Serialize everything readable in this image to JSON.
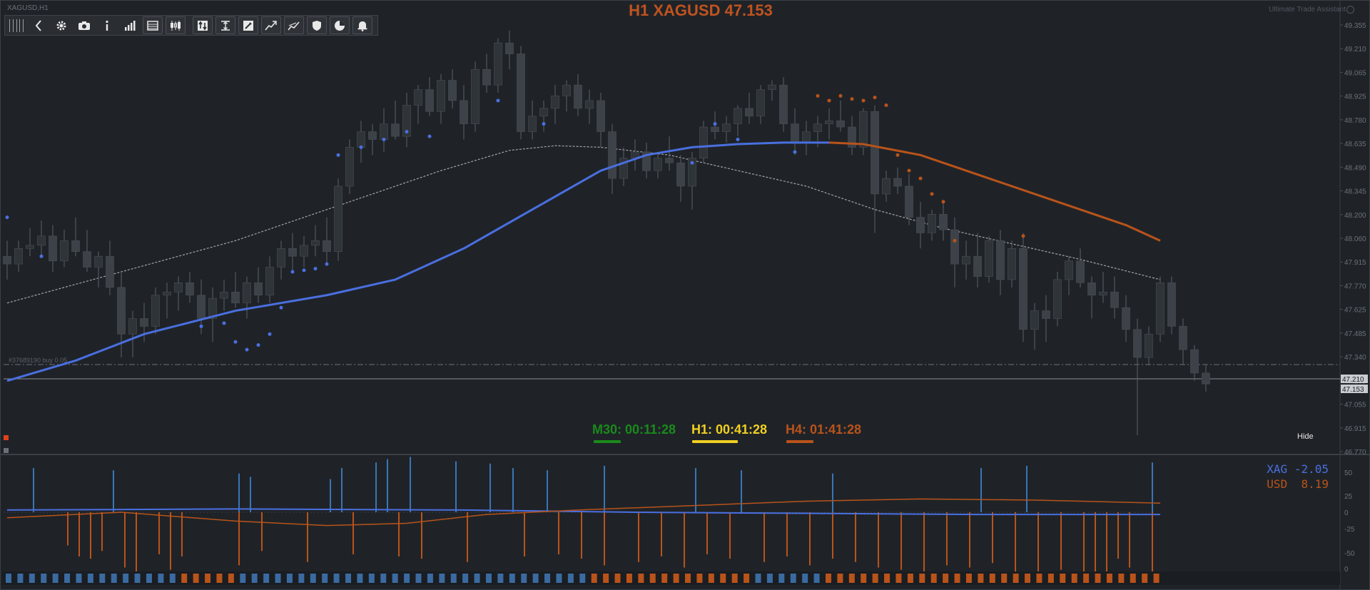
{
  "header": {
    "title": "H1 XAGUSD 47.153",
    "symbol_label": "XAGUSD,H1",
    "assistant_label": "Ultimate Trade Assistant"
  },
  "toolbar": {
    "buttons": [
      {
        "name": "grip",
        "icon": "grip-icon"
      },
      {
        "name": "collapse",
        "icon": "chevron-left-icon"
      },
      {
        "name": "settings",
        "icon": "gear-icon"
      },
      {
        "name": "screenshot",
        "icon": "camera-icon"
      },
      {
        "name": "info",
        "icon": "info-icon"
      },
      {
        "name": "volume-chart",
        "icon": "bar-chart-icon"
      },
      {
        "name": "list",
        "icon": "list-icon"
      },
      {
        "name": "candles",
        "icon": "candlestick-icon"
      },
      {
        "name": "trade-arrows",
        "icon": "arrows-icon"
      },
      {
        "name": "range",
        "icon": "range-icon"
      },
      {
        "name": "draw",
        "icon": "pencil-icon"
      },
      {
        "name": "trend-line",
        "icon": "trendline-icon"
      },
      {
        "name": "trend-line-2",
        "icon": "trendline-alt-icon"
      },
      {
        "name": "shield",
        "icon": "shield-icon"
      },
      {
        "name": "pie-chart",
        "icon": "pie-chart-icon"
      },
      {
        "name": "alerts",
        "icon": "bell-icon"
      }
    ]
  },
  "order_line": {
    "label": "#37689190 buy 0.05"
  },
  "timers": [
    {
      "label": "M30: 00:11:28",
      "color": "#1a8a1a"
    },
    {
      "label": "H1: 00:41:28",
      "color": "#f0d020"
    },
    {
      "label": "H4: 01:41:28",
      "color": "#b9531a"
    }
  ],
  "hide_label": "Hide",
  "price_axis": {
    "ticks": [
      "49.355",
      "49.210",
      "49.065",
      "48.925",
      "48.780",
      "48.635",
      "48.490",
      "48.345",
      "48.200",
      "48.060",
      "47.915",
      "47.770",
      "47.625",
      "47.485",
      "47.340",
      "47.195",
      "47.055",
      "46.915",
      "46.770"
    ],
    "current_price": "47.153",
    "order_price": "47.210"
  },
  "indicator_panel": {
    "legend": [
      {
        "label": "XAG",
        "value": "-2.05",
        "color": "#4a6fe0"
      },
      {
        "label": "USD",
        "value": "8.19",
        "color": "#b9531a"
      }
    ],
    "axis_ticks": [
      "50",
      "25",
      "0",
      "-25",
      "-50",
      "0"
    ]
  },
  "colors": {
    "background": "#1f2328",
    "bull_body": "#2f3439",
    "bear_body": "#3c4248",
    "wick": "#5a6068",
    "ma_fast": "#4a6fe0",
    "ma_fast_bear": "#b9531a",
    "ma_slow": "#b9bdc2",
    "dot_blue": "#4a6fe0",
    "dot_orange": "#b9531a",
    "accent_orange": "#c0531f"
  },
  "chart_data": {
    "type": "candlestick",
    "timeframe": "H1",
    "symbol": "XAGUSD",
    "ylim": [
      46.7,
      49.44
    ],
    "candles": [
      [
        47.95,
        48.05,
        47.8,
        47.9
      ],
      [
        47.9,
        48.05,
        47.85,
        48.0
      ],
      [
        48.0,
        48.13,
        47.95,
        48.02
      ],
      [
        48.02,
        48.18,
        47.96,
        48.08
      ],
      [
        48.08,
        48.15,
        47.85,
        47.92
      ],
      [
        47.92,
        48.12,
        47.88,
        48.05
      ],
      [
        48.05,
        48.2,
        47.95,
        47.98
      ],
      [
        47.98,
        48.12,
        47.85,
        47.88
      ],
      [
        47.88,
        47.98,
        47.75,
        47.95
      ],
      [
        47.95,
        48.05,
        47.7,
        47.75
      ],
      [
        47.75,
        47.85,
        47.3,
        47.45
      ],
      [
        47.45,
        47.6,
        47.3,
        47.55
      ],
      [
        47.55,
        47.65,
        47.4,
        47.5
      ],
      [
        47.5,
        47.75,
        47.45,
        47.7
      ],
      [
        47.7,
        47.78,
        47.55,
        47.72
      ],
      [
        47.72,
        47.82,
        47.6,
        47.78
      ],
      [
        47.78,
        47.85,
        47.65,
        47.7
      ],
      [
        47.7,
        47.8,
        47.45,
        47.55
      ],
      [
        47.55,
        47.75,
        47.4,
        47.68
      ],
      [
        47.68,
        47.8,
        47.6,
        47.72
      ],
      [
        47.72,
        47.85,
        47.62,
        47.65
      ],
      [
        47.65,
        47.82,
        47.55,
        47.78
      ],
      [
        47.78,
        47.88,
        47.65,
        47.7
      ],
      [
        47.7,
        47.95,
        47.65,
        47.88
      ],
      [
        47.88,
        48.05,
        47.8,
        48.0
      ],
      [
        48.0,
        48.1,
        47.85,
        47.95
      ],
      [
        47.95,
        48.08,
        47.88,
        48.02
      ],
      [
        48.02,
        48.15,
        47.95,
        48.05
      ],
      [
        48.05,
        48.2,
        47.9,
        47.98
      ],
      [
        47.98,
        48.45,
        47.92,
        48.4
      ],
      [
        48.4,
        48.7,
        48.35,
        48.65
      ],
      [
        48.65,
        48.82,
        48.55,
        48.75
      ],
      [
        48.75,
        48.8,
        48.6,
        48.7
      ],
      [
        48.7,
        48.9,
        48.62,
        48.8
      ],
      [
        48.8,
        48.95,
        48.7,
        48.72
      ],
      [
        48.72,
        49.0,
        48.65,
        48.92
      ],
      [
        48.92,
        49.05,
        48.8,
        49.02
      ],
      [
        49.02,
        49.1,
        48.85,
        48.88
      ],
      [
        48.88,
        49.12,
        48.8,
        49.08
      ],
      [
        49.08,
        49.15,
        48.9,
        48.95
      ],
      [
        48.95,
        49.05,
        48.7,
        48.8
      ],
      [
        48.8,
        49.2,
        48.75,
        49.15
      ],
      [
        49.15,
        49.25,
        49.0,
        49.05
      ],
      [
        49.05,
        49.35,
        49.0,
        49.32
      ],
      [
        49.32,
        49.4,
        49.15,
        49.25
      ],
      [
        49.25,
        49.3,
        48.7,
        48.75
      ],
      [
        48.75,
        48.95,
        48.7,
        48.85
      ],
      [
        48.85,
        48.95,
        48.75,
        48.9
      ],
      [
        48.9,
        49.05,
        48.8,
        48.98
      ],
      [
        48.98,
        49.08,
        48.88,
        49.05
      ],
      [
        49.05,
        49.12,
        48.85,
        48.9
      ],
      [
        48.9,
        49.02,
        48.8,
        48.95
      ],
      [
        48.95,
        49.0,
        48.65,
        48.75
      ],
      [
        48.75,
        48.8,
        48.35,
        48.45
      ],
      [
        48.45,
        48.65,
        48.4,
        48.58
      ],
      [
        48.58,
        48.7,
        48.5,
        48.62
      ],
      [
        48.62,
        48.68,
        48.45,
        48.5
      ],
      [
        48.5,
        48.62,
        48.45,
        48.58
      ],
      [
        48.58,
        48.72,
        48.5,
        48.55
      ],
      [
        48.55,
        48.6,
        48.3,
        48.4
      ],
      [
        48.4,
        48.62,
        48.25,
        48.58
      ],
      [
        48.58,
        48.82,
        48.55,
        48.78
      ],
      [
        48.78,
        48.88,
        48.7,
        48.75
      ],
      [
        48.75,
        48.85,
        48.68,
        48.8
      ],
      [
        48.8,
        48.92,
        48.72,
        48.9
      ],
      [
        48.9,
        49.0,
        48.8,
        48.85
      ],
      [
        48.85,
        49.05,
        48.8,
        49.02
      ],
      [
        49.02,
        49.08,
        48.95,
        49.05
      ],
      [
        49.05,
        49.1,
        48.75,
        48.8
      ],
      [
        48.8,
        48.9,
        48.6,
        48.68
      ],
      [
        48.68,
        48.82,
        48.6,
        48.75
      ],
      [
        48.75,
        48.85,
        48.65,
        48.8
      ],
      [
        48.8,
        48.9,
        48.7,
        48.82
      ],
      [
        48.82,
        48.95,
        48.75,
        48.78
      ],
      [
        48.78,
        48.85,
        48.6,
        48.65
      ],
      [
        48.65,
        48.9,
        48.6,
        48.88
      ],
      [
        48.88,
        48.92,
        48.1,
        48.35
      ],
      [
        48.35,
        48.5,
        48.3,
        48.45
      ],
      [
        48.45,
        48.52,
        48.35,
        48.4
      ],
      [
        48.4,
        48.48,
        48.15,
        48.2
      ],
      [
        48.2,
        48.3,
        48.0,
        48.1
      ],
      [
        48.1,
        48.25,
        48.05,
        48.22
      ],
      [
        48.22,
        48.3,
        48.05,
        48.12
      ],
      [
        48.12,
        48.2,
        47.75,
        47.9
      ],
      [
        47.9,
        48.05,
        47.8,
        47.95
      ],
      [
        47.95,
        48.1,
        47.75,
        47.82
      ],
      [
        47.82,
        48.08,
        47.78,
        48.05
      ],
      [
        48.05,
        48.12,
        47.7,
        47.8
      ],
      [
        47.8,
        48.05,
        47.75,
        48.0
      ],
      [
        48.0,
        48.1,
        47.4,
        47.48
      ],
      [
        47.48,
        47.65,
        47.35,
        47.6
      ],
      [
        47.6,
        47.7,
        47.4,
        47.55
      ],
      [
        47.55,
        47.85,
        47.5,
        47.8
      ],
      [
        47.8,
        47.95,
        47.7,
        47.92
      ],
      [
        47.92,
        48.0,
        47.75,
        47.78
      ],
      [
        47.78,
        47.82,
        47.55,
        47.7
      ],
      [
        47.7,
        47.85,
        47.65,
        47.72
      ],
      [
        47.72,
        47.82,
        47.55,
        47.62
      ],
      [
        47.62,
        47.7,
        47.4,
        47.48
      ],
      [
        47.48,
        47.55,
        46.8,
        47.3
      ],
      [
        47.3,
        47.5,
        47.25,
        47.45
      ],
      [
        47.45,
        47.82,
        47.4,
        47.78
      ],
      [
        47.78,
        47.82,
        47.45,
        47.5
      ],
      [
        47.5,
        47.55,
        47.25,
        47.35
      ],
      [
        47.35,
        47.38,
        47.15,
        47.2
      ],
      [
        47.2,
        47.25,
        47.08,
        47.13
      ]
    ],
    "ma_fast": [
      [
        0,
        47.15
      ],
      [
        6,
        47.28
      ],
      [
        12,
        47.45
      ],
      [
        20,
        47.6
      ],
      [
        28,
        47.7
      ],
      [
        34,
        47.8
      ],
      [
        40,
        48.0
      ],
      [
        46,
        48.25
      ],
      [
        52,
        48.5
      ],
      [
        56,
        48.6
      ],
      [
        60,
        48.65
      ],
      [
        64,
        48.67
      ],
      [
        68,
        48.68
      ],
      [
        72,
        48.68
      ],
      [
        75,
        48.67
      ],
      [
        80,
        48.6
      ],
      [
        86,
        48.45
      ],
      [
        92,
        48.3
      ],
      [
        98,
        48.15
      ],
      [
        101,
        48.05
      ]
    ],
    "ma_fast_bear_from": 72,
    "ma_slow": [
      [
        0,
        47.65
      ],
      [
        10,
        47.85
      ],
      [
        20,
        48.05
      ],
      [
        30,
        48.3
      ],
      [
        38,
        48.5
      ],
      [
        44,
        48.63
      ],
      [
        48,
        48.66
      ],
      [
        52,
        48.65
      ],
      [
        58,
        48.6
      ],
      [
        64,
        48.5
      ],
      [
        70,
        48.4
      ],
      [
        76,
        48.25
      ],
      [
        82,
        48.13
      ],
      [
        88,
        48.03
      ],
      [
        94,
        47.93
      ],
      [
        101,
        47.8
      ]
    ],
    "dots_blue": [
      [
        0,
        48.2
      ],
      [
        3,
        47.95
      ],
      [
        17,
        47.5
      ],
      [
        19,
        47.52
      ],
      [
        20,
        47.4
      ],
      [
        21,
        47.35
      ],
      [
        22,
        47.38
      ],
      [
        23,
        47.45
      ],
      [
        24,
        47.62
      ],
      [
        25,
        47.85
      ],
      [
        26,
        47.86
      ],
      [
        27,
        47.87
      ],
      [
        28,
        47.9
      ],
      [
        29,
        48.6
      ],
      [
        31,
        48.65
      ],
      [
        33,
        48.7
      ],
      [
        35,
        48.75
      ],
      [
        37,
        48.72
      ],
      [
        43,
        48.95
      ],
      [
        47,
        48.8
      ],
      [
        60,
        48.55
      ],
      [
        62,
        48.8
      ],
      [
        64,
        48.7
      ],
      [
        69,
        48.62
      ]
    ],
    "dots_orange": [
      [
        71,
        48.98
      ],
      [
        72,
        48.95
      ],
      [
        73,
        48.98
      ],
      [
        74,
        48.96
      ],
      [
        75,
        48.95
      ],
      [
        76,
        48.97
      ],
      [
        77,
        48.92
      ],
      [
        78,
        48.6
      ],
      [
        79,
        48.5
      ],
      [
        80,
        48.45
      ],
      [
        81,
        48.35
      ],
      [
        82,
        48.3
      ],
      [
        83,
        48.05
      ],
      [
        89,
        48.08
      ]
    ],
    "order_price": 47.21,
    "current_price": 47.153,
    "strength_histogram_xag": [
      [
        2,
        40
      ],
      [
        9,
        38
      ],
      [
        20,
        35
      ],
      [
        21,
        32
      ],
      [
        28,
        30
      ],
      [
        29,
        40
      ],
      [
        32,
        45
      ],
      [
        33,
        48
      ],
      [
        35,
        50
      ],
      [
        39,
        46
      ],
      [
        42,
        44
      ],
      [
        44,
        40
      ],
      [
        47,
        38
      ],
      [
        52,
        42
      ],
      [
        60,
        40
      ],
      [
        64,
        38
      ],
      [
        72,
        35
      ],
      [
        85,
        40
      ],
      [
        89,
        42
      ],
      [
        100,
        45
      ]
    ],
    "strength_histogram_usd": [
      [
        5,
        -30
      ],
      [
        6,
        -40
      ],
      [
        7,
        -42
      ],
      [
        8,
        -35
      ],
      [
        10,
        -50
      ],
      [
        11,
        -55
      ],
      [
        13,
        -38
      ],
      [
        14,
        -52
      ],
      [
        15,
        -40
      ],
      [
        20,
        -48
      ],
      [
        22,
        -35
      ],
      [
        26,
        -45
      ],
      [
        30,
        -38
      ],
      [
        34,
        -40
      ],
      [
        36,
        -42
      ],
      [
        40,
        -45
      ],
      [
        45,
        -40
      ],
      [
        48,
        -38
      ],
      [
        50,
        -42
      ],
      [
        52,
        -48
      ],
      [
        55,
        -45
      ],
      [
        57,
        -40
      ],
      [
        59,
        -50
      ],
      [
        61,
        -38
      ],
      [
        63,
        -42
      ],
      [
        66,
        -45
      ],
      [
        68,
        -40
      ],
      [
        70,
        -48
      ],
      [
        72,
        -42
      ],
      [
        74,
        -45
      ],
      [
        76,
        -50
      ],
      [
        78,
        -52
      ],
      [
        80,
        -55
      ],
      [
        82,
        -48
      ],
      [
        84,
        -50
      ],
      [
        86,
        -46
      ],
      [
        88,
        -55
      ],
      [
        90,
        -58
      ],
      [
        92,
        -52
      ],
      [
        94,
        -56
      ],
      [
        95,
        -60
      ],
      [
        96,
        -55
      ],
      [
        97,
        -42
      ],
      [
        98,
        -50
      ],
      [
        100,
        -55
      ]
    ],
    "strength_xag_line": [
      [
        0,
        2
      ],
      [
        20,
        3
      ],
      [
        40,
        2
      ],
      [
        55,
        0
      ],
      [
        70,
        -1
      ],
      [
        85,
        -2
      ],
      [
        101,
        -2.05
      ]
    ],
    "strength_usd_line": [
      [
        0,
        -5
      ],
      [
        10,
        0
      ],
      [
        20,
        -8
      ],
      [
        28,
        -12
      ],
      [
        35,
        -10
      ],
      [
        42,
        -2
      ],
      [
        50,
        2
      ],
      [
        60,
        6
      ],
      [
        70,
        10
      ],
      [
        80,
        12
      ],
      [
        90,
        11
      ],
      [
        101,
        8.19
      ]
    ],
    "heat_bar_colors": "BBBBBBBBBBBBBBBOOOOOBBBBBBBBBBBBBBBBBBBBBBBBBBBBBBOOOOOOOOOOOOOOBBBBBBOOOOOOOOOOOOOOOOOOOOOOOOOOOOO"
  }
}
